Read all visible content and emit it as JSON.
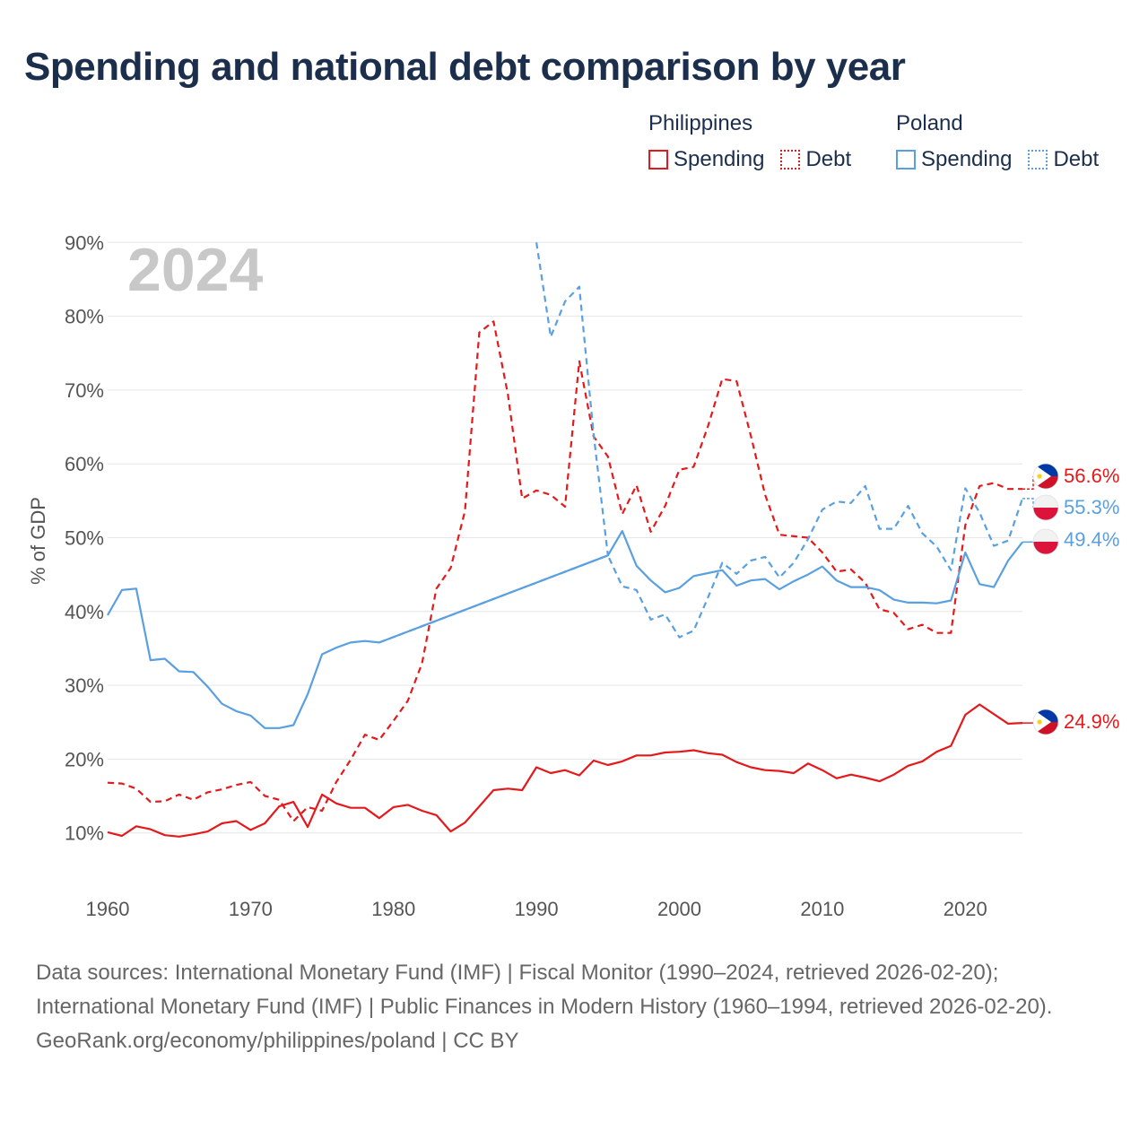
{
  "title": "Spending and national debt comparison by year",
  "legend": {
    "groups": [
      {
        "name": "Philippines",
        "spending": "Spending",
        "debt": "Debt"
      },
      {
        "name": "Poland",
        "spending": "Spending",
        "debt": "Debt"
      }
    ]
  },
  "colors": {
    "philippines": "#e31a1c",
    "poland": "#5aa0e0",
    "grid": "#e6e6e6"
  },
  "sources": {
    "line1": "Data sources: International Monetary Fund (IMF) | Fiscal Monitor (1990–2024, retrieved 2026-02-20); International Monetary Fund (IMF) | Public Finances in Modern History (1960–1994, retrieved 2026-02-20).",
    "line2": "GeoRank.org/economy/philippines/poland | CC BY"
  },
  "chart_data": {
    "type": "line",
    "year_label": "2024",
    "ylabel": "% of GDP",
    "xlabel": "",
    "xlim": [
      1960,
      2024
    ],
    "ylim": [
      0,
      90
    ],
    "x_ticks": [
      "1960",
      "1970",
      "1980",
      "1990",
      "2000",
      "2010",
      "2020"
    ],
    "y_ticks": [
      "10%",
      "20%",
      "30%",
      "40%",
      "50%",
      "60%",
      "70%",
      "80%",
      "90%"
    ],
    "series": [
      {
        "name": "Philippines Spending",
        "country": "philippines",
        "style": "solid",
        "end_label": "24.9%",
        "x": [
          1960,
          1961,
          1962,
          1963,
          1964,
          1965,
          1966,
          1967,
          1968,
          1969,
          1970,
          1971,
          1972,
          1973,
          1974,
          1975,
          1976,
          1977,
          1978,
          1979,
          1980,
          1981,
          1982,
          1983,
          1984,
          1985,
          1986,
          1987,
          1988,
          1989,
          1990,
          1991,
          1992,
          1993,
          1994,
          1995,
          1996,
          1997,
          1998,
          1999,
          2000,
          2001,
          2002,
          2003,
          2004,
          2005,
          2006,
          2007,
          2008,
          2009,
          2010,
          2011,
          2012,
          2013,
          2014,
          2015,
          2016,
          2017,
          2018,
          2019,
          2020,
          2021,
          2022,
          2023,
          2024
        ],
        "values": [
          10.1,
          9.6,
          10.9,
          10.5,
          9.7,
          9.5,
          9.8,
          10.2,
          11.3,
          11.6,
          10.4,
          11.3,
          13.6,
          14.2,
          10.8,
          15.2,
          14.0,
          13.4,
          13.4,
          12.0,
          13.5,
          13.8,
          13.0,
          12.4,
          10.2,
          11.4,
          13.6,
          15.8,
          16.0,
          15.8,
          18.9,
          18.1,
          18.5,
          17.8,
          19.8,
          19.2,
          19.7,
          20.5,
          20.5,
          20.9,
          21.0,
          21.2,
          20.8,
          20.6,
          19.6,
          18.9,
          18.5,
          18.4,
          18.1,
          19.4,
          18.5,
          17.4,
          17.9,
          17.5,
          17.0,
          17.9,
          19.1,
          19.7,
          21.0,
          21.8,
          26.0,
          27.4,
          26.1,
          24.8,
          24.9
        ]
      },
      {
        "name": "Philippines Debt",
        "country": "philippines",
        "style": "dash",
        "end_label": "56.6%",
        "x": [
          1960,
          1961,
          1962,
          1963,
          1964,
          1965,
          1966,
          1967,
          1968,
          1969,
          1970,
          1971,
          1972,
          1973,
          1974,
          1975,
          1976,
          1977,
          1978,
          1979,
          1980,
          1981,
          1982,
          1983,
          1984,
          1985,
          1986,
          1987,
          1988,
          1989,
          1990,
          1991,
          1992,
          1993,
          1994,
          1995,
          1996,
          1997,
          1998,
          1999,
          2000,
          2001,
          2002,
          2003,
          2004,
          2005,
          2006,
          2007,
          2008,
          2009,
          2010,
          2011,
          2012,
          2013,
          2014,
          2015,
          2016,
          2017,
          2018,
          2019,
          2020,
          2021,
          2022,
          2023,
          2024
        ],
        "values": [
          16.8,
          16.7,
          16.0,
          14.2,
          14.3,
          15.2,
          14.5,
          15.5,
          15.9,
          16.5,
          16.9,
          15.0,
          14.5,
          11.6,
          13.5,
          13.0,
          16.9,
          19.9,
          23.3,
          22.6,
          25.2,
          27.9,
          33.0,
          43.1,
          45.9,
          53.6,
          77.8,
          79.3,
          69.4,
          55.3,
          56.4,
          55.8,
          54.2,
          73.9,
          63.7,
          61.0,
          53.2,
          57.1,
          50.8,
          54.3,
          59.2,
          59.6,
          65.1,
          71.5,
          71.2,
          63.8,
          55.8,
          50.4,
          50.2,
          50.0,
          48.0,
          45.4,
          45.7,
          43.9,
          40.3,
          39.8,
          37.6,
          38.2,
          37.1,
          37.1,
          51.7,
          57.0,
          57.4,
          56.6,
          56.6
        ]
      },
      {
        "name": "Poland Spending",
        "country": "poland",
        "style": "solid",
        "end_label": "49.4%",
        "x": [
          1960,
          1961,
          1962,
          1963,
          1964,
          1965,
          1966,
          1967,
          1968,
          1969,
          1970,
          1971,
          1972,
          1973,
          1974,
          1975,
          1976,
          1977,
          1978,
          1979,
          1995,
          1996,
          1997,
          1998,
          1999,
          2000,
          2001,
          2002,
          2003,
          2004,
          2005,
          2006,
          2007,
          2008,
          2009,
          2010,
          2011,
          2012,
          2013,
          2014,
          2015,
          2016,
          2017,
          2018,
          2019,
          2020,
          2021,
          2022,
          2023,
          2024
        ],
        "values": [
          39.5,
          42.9,
          43.1,
          33.4,
          33.6,
          31.9,
          31.8,
          29.8,
          27.5,
          26.5,
          25.9,
          24.2,
          24.2,
          24.6,
          28.8,
          34.2,
          35.1,
          35.8,
          36.0,
          35.8,
          47.6,
          50.9,
          46.2,
          44.2,
          42.6,
          43.2,
          44.8,
          45.2,
          45.6,
          43.5,
          44.2,
          44.4,
          43.0,
          44.1,
          45.0,
          46.1,
          44.2,
          43.3,
          43.3,
          42.9,
          41.6,
          41.2,
          41.2,
          41.1,
          41.5,
          48.0,
          43.7,
          43.3,
          46.9,
          49.4
        ]
      },
      {
        "name": "Poland Debt",
        "country": "poland",
        "style": "dash",
        "end_label": "55.3%",
        "x": [
          1979,
          1995,
          1996,
          1997,
          1998,
          1999,
          2000,
          2001,
          2002,
          2003,
          2004,
          2005,
          2006,
          2007,
          2008,
          2009,
          2010,
          2011,
          2012,
          2013,
          2014,
          2015,
          2016,
          2017,
          2018,
          2019,
          2020,
          2021,
          2022,
          2023,
          2024
        ],
        "values": [
          35.8,
          47.6,
          43.4,
          42.9,
          38.9,
          39.6,
          36.5,
          37.4,
          41.9,
          46.6,
          45.1,
          46.9,
          47.4,
          44.6,
          46.6,
          49.8,
          53.8,
          54.9,
          54.7,
          57.0,
          51.2,
          51.2,
          54.3,
          50.6,
          48.8,
          45.6,
          56.7,
          53.4,
          48.9,
          49.6,
          55.3
        ]
      },
      {
        "name": "Poland Debt (early 1990s)",
        "country": "poland",
        "style": "dash",
        "end_label": "",
        "x": [
          1990,
          1991,
          1992,
          1993,
          1994,
          1995
        ],
        "values": [
          90.0,
          77.2,
          82.0,
          84.0,
          64.0,
          47.6
        ]
      }
    ]
  }
}
